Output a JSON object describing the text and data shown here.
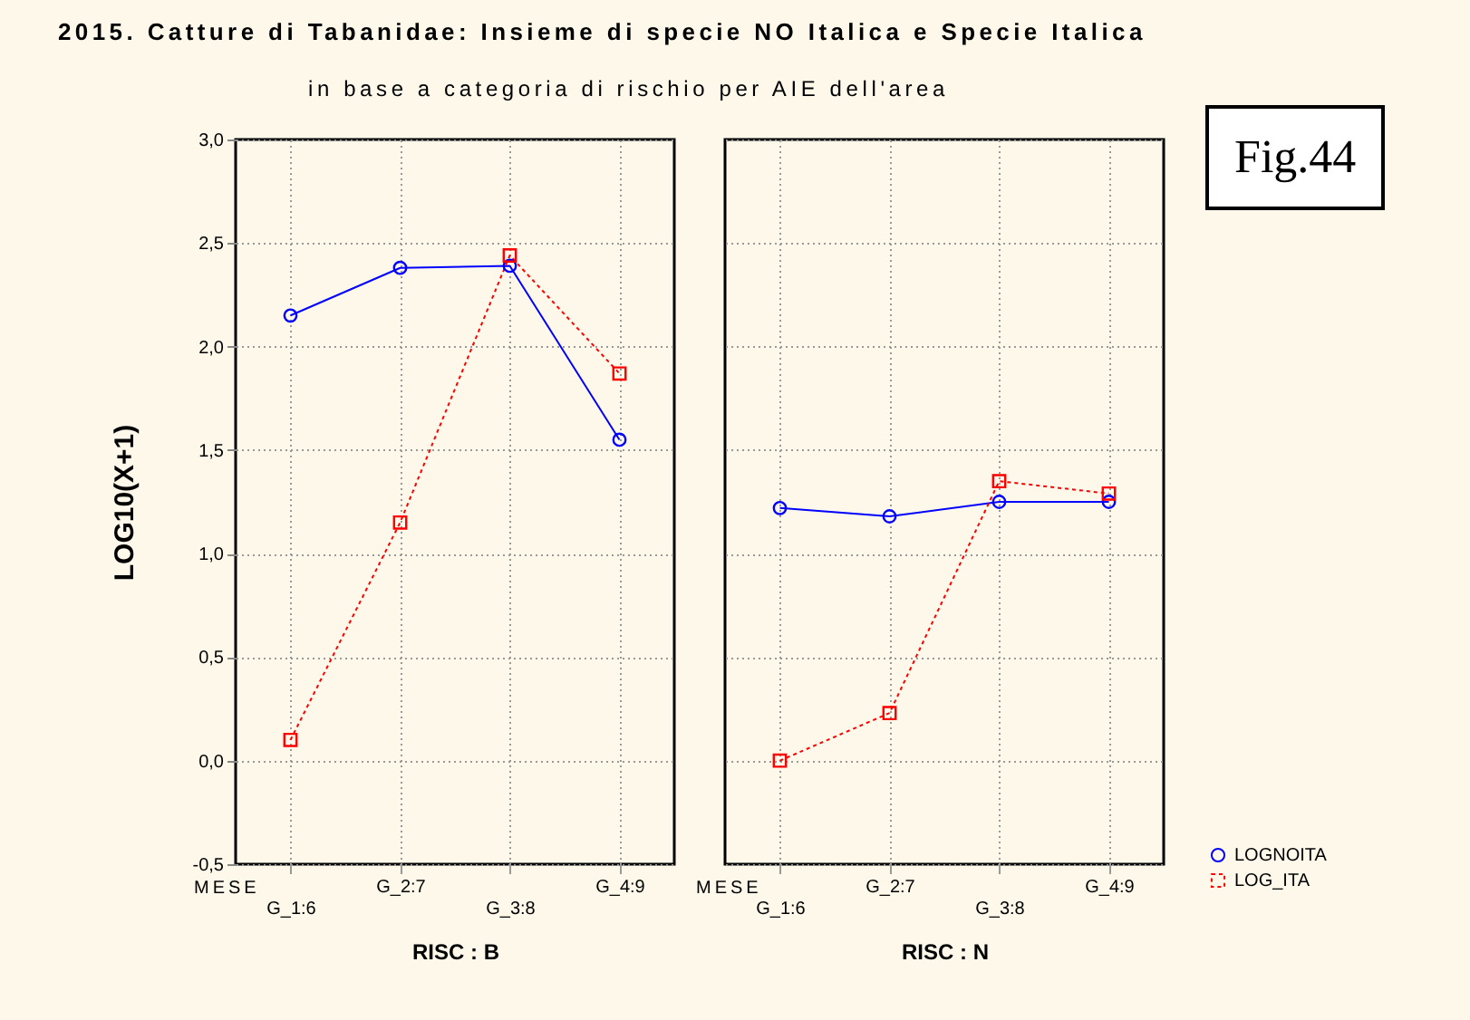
{
  "chart_data": [
    {
      "type": "line",
      "title": "2015. Catture di Tabanidae: Insieme di specie NO Italica e Specie Italica",
      "subtitle": "in base a categoria di rischio per AIE dell'area",
      "xlabel": "RISC : B",
      "ylabel": "LOG10(X+1)",
      "categories": [
        "G_1:6",
        "G_2:7",
        "G_3:8",
        "G_4:9"
      ],
      "series": [
        {
          "color": "#0000ff",
          "marker": "circle",
          "line_style": "solid",
          "values": [
            2.15,
            2.38,
            2.39,
            1.55
          ]
        },
        {
          "color": "#ff0000",
          "marker": "square",
          "line_style": "dotted",
          "values": [
            0.1,
            1.15,
            2.44,
            1.87
          ]
        }
      ],
      "ylim": [
        -0.5,
        3.0
      ],
      "yticks": [
        {
          "value": -0.5,
          "label": "-0,5"
        },
        {
          "value": 0,
          "label": "0,0"
        },
        {
          "value": 0.5,
          "label": "0,5"
        },
        {
          "value": 1,
          "label": "1,0"
        },
        {
          "value": 1.5,
          "label": "1,5"
        },
        {
          "value": 2,
          "label": "2,0"
        },
        {
          "value": 2.5,
          "label": "2,5"
        },
        {
          "value": 3,
          "label": "3,0"
        }
      ],
      "grid": true,
      "annotations": [
        "MESE"
      ]
    },
    {
      "type": "line",
      "xlabel": "RISC : N",
      "categories": [
        "G_1:6",
        "G_2:7",
        "G_3:8",
        "G_4:9"
      ],
      "series": [
        {
          "name": "LOGNOITA",
          "color": "#0000ff",
          "marker": "circle",
          "line_style": "solid",
          "values": [
            1.22,
            1.18,
            1.25,
            1.25
          ]
        },
        {
          "name": "LOG_ITA",
          "color": "#ff0000",
          "marker": "square",
          "line_style": "dotted",
          "values": [
            0.0,
            0.23,
            1.35,
            1.29
          ]
        }
      ],
      "ylim": [
        -0.5,
        3.0
      ],
      "yticks": [
        {
          "value": -0.5,
          "label": null
        },
        {
          "value": 0,
          "label": null
        },
        {
          "value": 0.5,
          "label": null
        },
        {
          "value": 1,
          "label": null
        },
        {
          "value": 1.5,
          "label": null
        },
        {
          "value": 2,
          "label": null
        },
        {
          "value": 2.5,
          "label": null
        },
        {
          "value": 3,
          "label": null
        }
      ],
      "tick_labels": "x",
      "grid": true,
      "legend": "bottom right",
      "annotations": [
        "MESE",
        "Fig.44"
      ]
    }
  ]
}
